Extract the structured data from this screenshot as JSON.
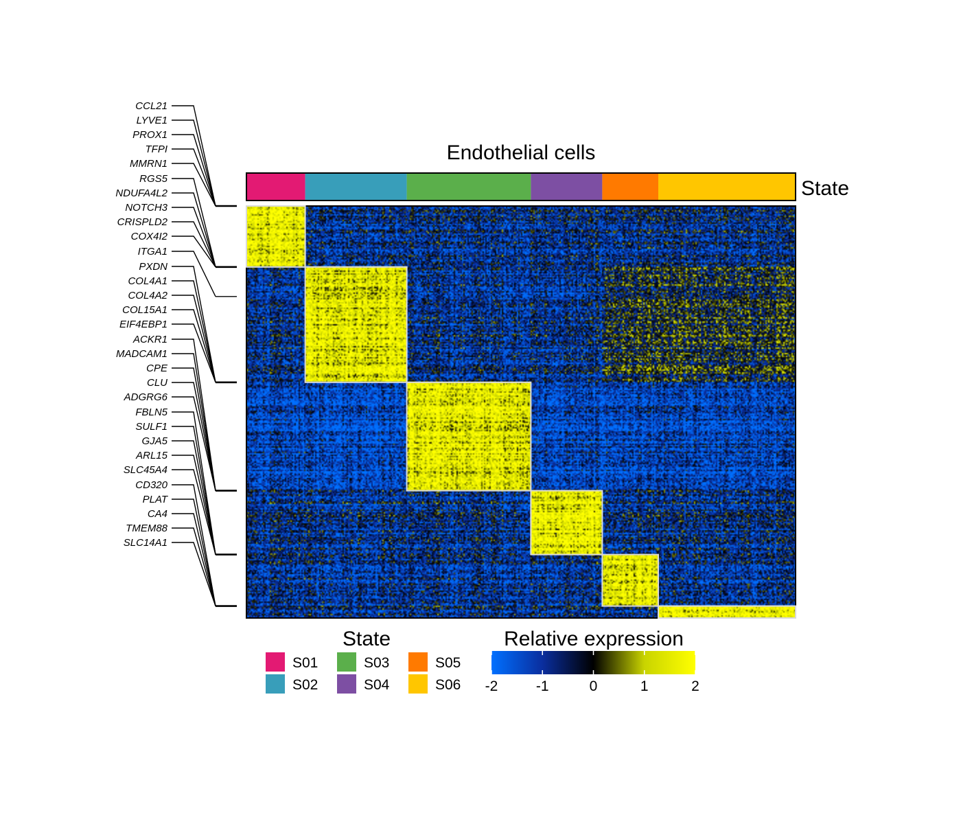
{
  "chart_data": {
    "type": "heatmap",
    "title": "Endothelial cells",
    "annotation_label": "State",
    "states": [
      {
        "name": "S01",
        "color": "#E31A73",
        "cell_fraction": 0.107
      },
      {
        "name": "S02",
        "color": "#389EBA",
        "cell_fraction": 0.185
      },
      {
        "name": "S03",
        "color": "#5BAF4B",
        "cell_fraction": 0.226
      },
      {
        "name": "S04",
        "color": "#7D4FA3",
        "cell_fraction": 0.13
      },
      {
        "name": "S05",
        "color": "#FF7A00",
        "cell_fraction": 0.102
      },
      {
        "name": "S06",
        "color": "#FFC600",
        "cell_fraction": 0.25
      }
    ],
    "gene_block_fractions": [
      0.148,
      0.28,
      0.263,
      0.155,
      0.125,
      0.029
    ],
    "gene_groups": [
      {
        "state": "S01",
        "genes": [
          "CCL21",
          "LYVE1",
          "PROX1",
          "TFPI",
          "MMRN1"
        ]
      },
      {
        "state": "S01",
        "genes": [
          "RGS5",
          "NDUFA4L2",
          "NOTCH3",
          "CRISPLD2",
          "COX4I2"
        ]
      },
      {
        "state": "S02",
        "genes": [
          "ITGA1"
        ]
      },
      {
        "state": "S02",
        "genes": [
          "PXDN",
          "COL4A1",
          "COL4A2",
          "COL15A1",
          "EIF4EBP1"
        ]
      },
      {
        "state": "S03",
        "genes": [
          "ACKR1",
          "MADCAM1",
          "CPE",
          "CLU",
          "ADGRG6"
        ]
      },
      {
        "state": "S04",
        "genes": [
          "FBLN5",
          "SULF1",
          "GJA5",
          "ARL15",
          "SLC45A4"
        ]
      },
      {
        "state": "S05",
        "genes": [
          "CD320",
          "PLAT",
          "CA4",
          "TMEM88",
          "SLC14A1"
        ]
      }
    ],
    "color_scale": {
      "title": "Relative expression",
      "min": -2,
      "max": 2,
      "ticks": [
        "-2",
        "-1",
        "0",
        "1",
        "2"
      ],
      "colors": [
        "#0070FF",
        "#0A2E9E",
        "#000000",
        "#C9D400",
        "#FFFF00"
      ]
    },
    "legend": {
      "title": "State",
      "placement": "bottom"
    }
  }
}
